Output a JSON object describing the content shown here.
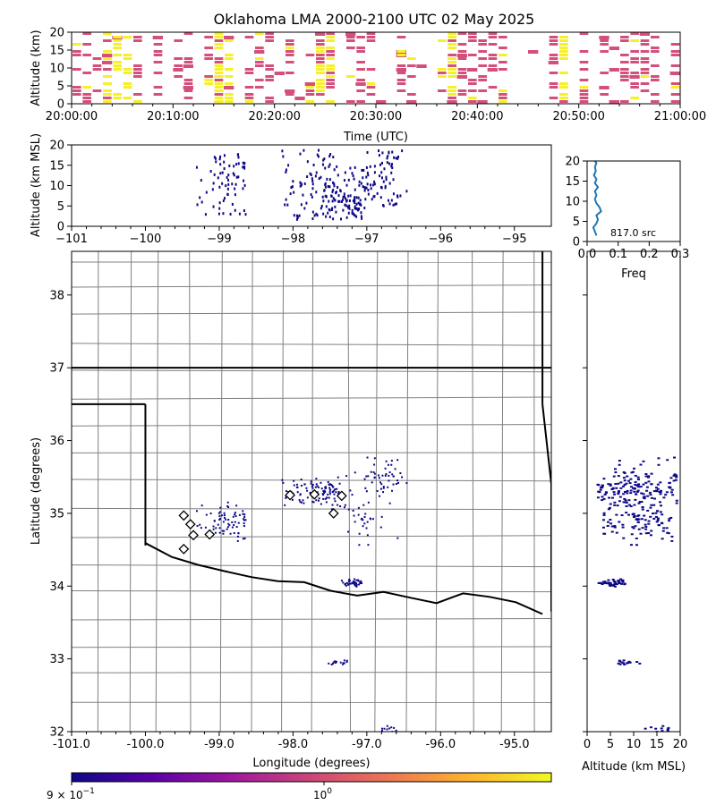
{
  "title": "Oklahoma LMA 2000-2100 UTC 02 May 2025",
  "chart_data": [
    {
      "type": "heatmap",
      "name": "time-height",
      "xlabel": "Time (UTC)",
      "ylabel": "Altitude (km)",
      "xlim": [
        "20:00:00",
        "21:00:00"
      ],
      "ylim": [
        0,
        20
      ],
      "xticks": [
        "20:00:00",
        "20:10:00",
        "20:20:00",
        "20:30:00",
        "20:40:00",
        "20:50:00",
        "21:00:00"
      ],
      "yticks": [
        "0",
        "5",
        "10",
        "15",
        "20"
      ]
    },
    {
      "type": "scatter",
      "name": "longitude-altitude",
      "xlabel": "",
      "ylabel": "Altitude (km MSL)",
      "xlim": [
        -101,
        -94.5
      ],
      "ylim": [
        0,
        20
      ],
      "xticks": [
        "−101",
        "−100",
        "−99",
        "−98",
        "−97",
        "−96",
        "−95"
      ],
      "yticks": [
        "0",
        "5",
        "10",
        "15",
        "20"
      ]
    },
    {
      "type": "line",
      "name": "altitude-histogram",
      "xlabel": "Freq",
      "ylabel": "",
      "xlim": [
        0,
        0.3
      ],
      "ylim": [
        0,
        20
      ],
      "xticks": [
        "0.0",
        "0.1",
        "0.2",
        "0.3"
      ],
      "yticks": [
        "0",
        "5",
        "10",
        "15",
        "20"
      ],
      "annotation": "817.0 src",
      "series": [
        {
          "x": [
            0.03,
            0.025,
            0.02,
            0.03,
            0.035,
            0.03,
            0.045,
            0.04,
            0.03,
            0.025,
            0.03,
            0.025,
            0.035,
            0.025,
            0.03,
            0.022,
            0.028,
            0.025,
            0.03,
            0.025
          ],
          "y": [
            1.5,
            2.5,
            3.5,
            4.5,
            5.5,
            6.5,
            7.5,
            8.5,
            9.5,
            10.5,
            11.5,
            12.5,
            13.5,
            14.5,
            15.5,
            16.5,
            17.5,
            18.5,
            19.5,
            20
          ]
        }
      ]
    },
    {
      "type": "scatter",
      "name": "plan-view",
      "xlabel": "Longitude (degrees)",
      "ylabel": "Latitude (degrees)",
      "xlim": [
        -101,
        -94.5
      ],
      "ylim": [
        32,
        38.6
      ],
      "xticks": [
        "-101.0",
        "-100.0",
        "-99.0",
        "-98.0",
        "-97.0",
        "-96.0",
        "-95.0"
      ],
      "yticks": [
        "32",
        "33",
        "34",
        "35",
        "36",
        "37",
        "38"
      ],
      "stations": [
        {
          "lon": -99.48,
          "lat": 34.97
        },
        {
          "lon": -99.39,
          "lat": 34.85
        },
        {
          "lon": -99.35,
          "lat": 34.7
        },
        {
          "lon": -99.13,
          "lat": 34.71
        },
        {
          "lon": -99.48,
          "lat": 34.51
        },
        {
          "lon": -98.04,
          "lat": 35.25
        },
        {
          "lon": -97.71,
          "lat": 35.26
        },
        {
          "lon": -97.34,
          "lat": 35.24
        },
        {
          "lon": -97.45,
          "lat": 35.0
        }
      ]
    },
    {
      "type": "scatter",
      "name": "altitude-latitude",
      "xlabel": "Altitude (km MSL)",
      "ylabel": "",
      "xlim": [
        0,
        20
      ],
      "ylim": [
        32,
        38.6
      ],
      "xticks": [
        "0",
        "5",
        "10",
        "15",
        "20"
      ]
    }
  ],
  "colorbar": {
    "min_label": "9 × 10",
    "min_exp": "−1",
    "max_label": "10",
    "max_exp": "0",
    "colors": [
      "#0d0887",
      "#5c01a6",
      "#9c179e",
      "#cc4778",
      "#ed7953",
      "#fdb42f",
      "#f0f921"
    ]
  },
  "colors": {
    "source": "#0d0887",
    "time_pink": "#d4507a",
    "time_yellow": "#f5f02a",
    "hist_line": "#1f77b4",
    "county": "#808080"
  }
}
